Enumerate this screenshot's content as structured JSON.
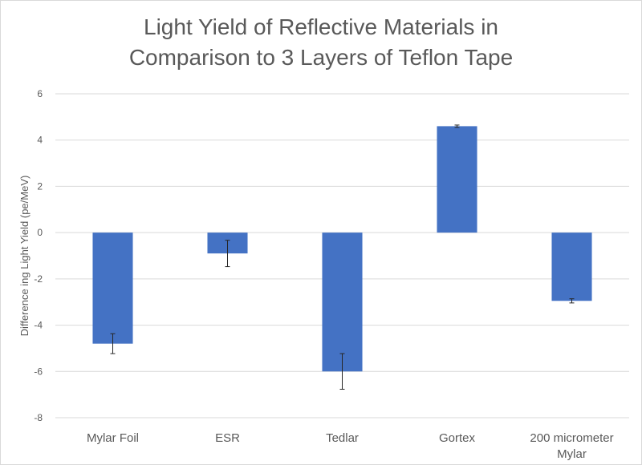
{
  "chart_data": {
    "type": "bar",
    "title_lines": [
      "Light Yield of Reflective Materials in",
      "Comparison to 3 Layers of Teflon Tape"
    ],
    "xlabel": "",
    "ylabel": "Difference ing Light Yield (pe/MeV)",
    "categories": [
      [
        "Mylar Foil"
      ],
      [
        "ESR"
      ],
      [
        "Tedlar"
      ],
      [
        "Gortex"
      ],
      [
        "200 micrometer",
        "Mylar"
      ]
    ],
    "values": [
      -4.8,
      -0.9,
      -6.0,
      4.6,
      -2.95
    ],
    "errors": [
      0.43,
      0.57,
      0.77,
      0.05,
      0.09
    ],
    "ylim": [
      -8,
      6
    ],
    "yticks": [
      6,
      4,
      2,
      0,
      -2,
      -4,
      -6,
      -8
    ],
    "grid": true,
    "bar_color": "#4472c4",
    "error_color": "#262626"
  }
}
